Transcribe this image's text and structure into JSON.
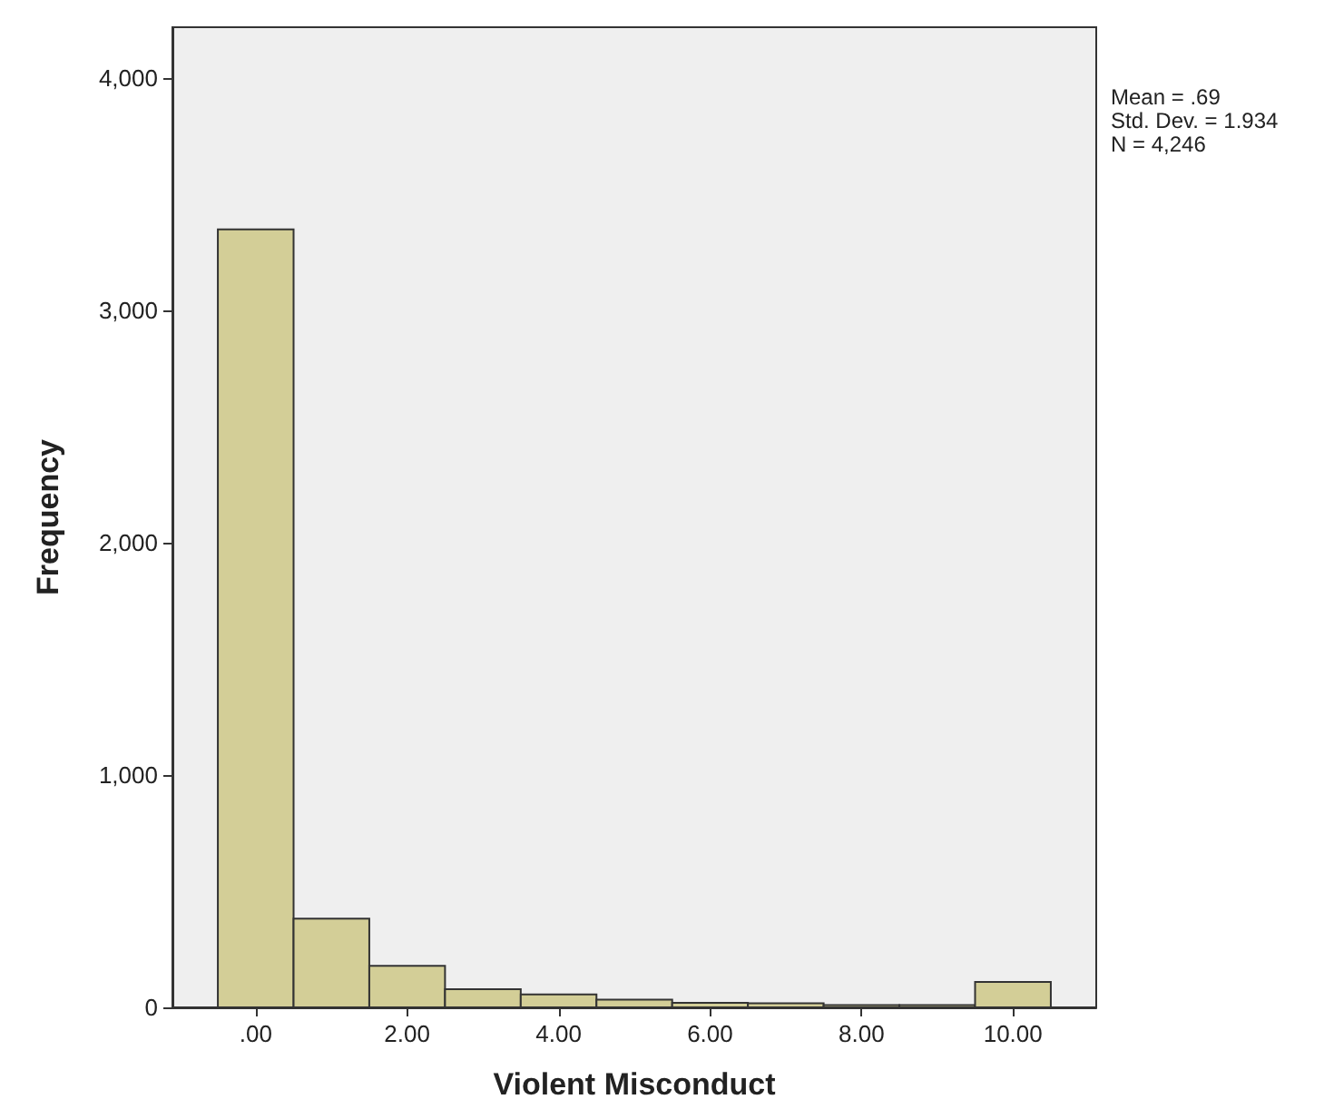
{
  "chart_data": {
    "type": "histogram",
    "xlabel": "Violent Misconduct",
    "ylabel": "Frequency",
    "bins": [
      -0.5,
      0.5,
      1.5,
      2.5,
      3.5,
      4.5,
      5.5,
      6.5,
      7.5,
      8.5,
      9.5,
      10.5
    ],
    "values": [
      3350,
      382,
      179,
      78,
      56,
      33,
      20,
      18,
      10,
      10,
      109
    ],
    "color": "#d3ce97",
    "xlim": [
      -1.1,
      11.1
    ],
    "xticks": [
      {
        "value": 0,
        "label": ".00"
      },
      {
        "value": 2,
        "label": "2.00"
      },
      {
        "value": 4,
        "label": "4.00"
      },
      {
        "value": 6,
        "label": "6.00"
      },
      {
        "value": 8,
        "label": "8.00"
      },
      {
        "value": 10,
        "label": "10.00"
      }
    ],
    "ylim": [
      0,
      4220
    ],
    "yticks": [
      {
        "value": 0,
        "label": "0"
      },
      {
        "value": 1000,
        "label": "1,000"
      },
      {
        "value": 2000,
        "label": "2,000"
      },
      {
        "value": 3000,
        "label": "3,000"
      },
      {
        "value": 4000,
        "label": "4,000"
      }
    ],
    "annotations": [
      "Mean = .69\nStd. Dev. = 1.934\nN = 4,246"
    ],
    "grid": false
  }
}
